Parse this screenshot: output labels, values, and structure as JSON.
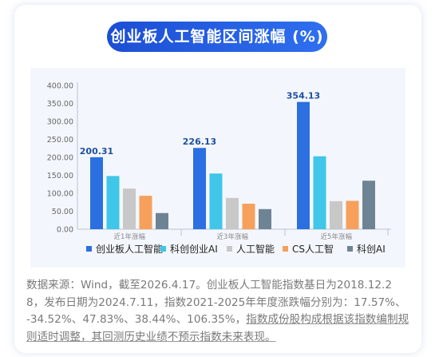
{
  "chart_data": {
    "type": "bar",
    "title": "创业板人工智能区间涨幅 (%)",
    "categories": [
      "近1年涨幅",
      "近3年涨幅",
      "近5年涨幅"
    ],
    "ylim": [
      0,
      400
    ],
    "yticks": [
      "0.00",
      "50.00",
      "100.00",
      "150.00",
      "200.00",
      "250.00",
      "300.00",
      "350.00",
      "400.00"
    ],
    "grid": false,
    "legend_position": "bottom",
    "series": [
      {
        "name": "创业板人工智能",
        "color": "#2b6fe0",
        "values": [
          200.31,
          226.13,
          354.13
        ],
        "labels": [
          "200.31",
          "226.13",
          "354.13"
        ]
      },
      {
        "name": "科创创业AI",
        "color": "#3fc6e8",
        "values": [
          148,
          155,
          203
        ]
      },
      {
        "name": "人工智能",
        "color": "#c8c8c8",
        "values": [
          113,
          87,
          78
        ]
      },
      {
        "name": "CS人工智",
        "color": "#f6a05c",
        "values": [
          93,
          71,
          79
        ]
      },
      {
        "name": "科创AI",
        "color": "#6e8495",
        "values": [
          45,
          56,
          135
        ]
      }
    ]
  },
  "note": {
    "text": "数据来源：Wind，截至2026.4.17。创业板人工智能指数基日为2018.12.28，发布日期为2024.7.11，指数2021-2025年年度涨跌幅分别为：17.57%、-34.52%、47.83%、38.44%、106.35%，",
    "underlined": "指数成份股构成根据该指数编制规则适时调整，其回测历史业绩不预示指数未来表现。"
  }
}
